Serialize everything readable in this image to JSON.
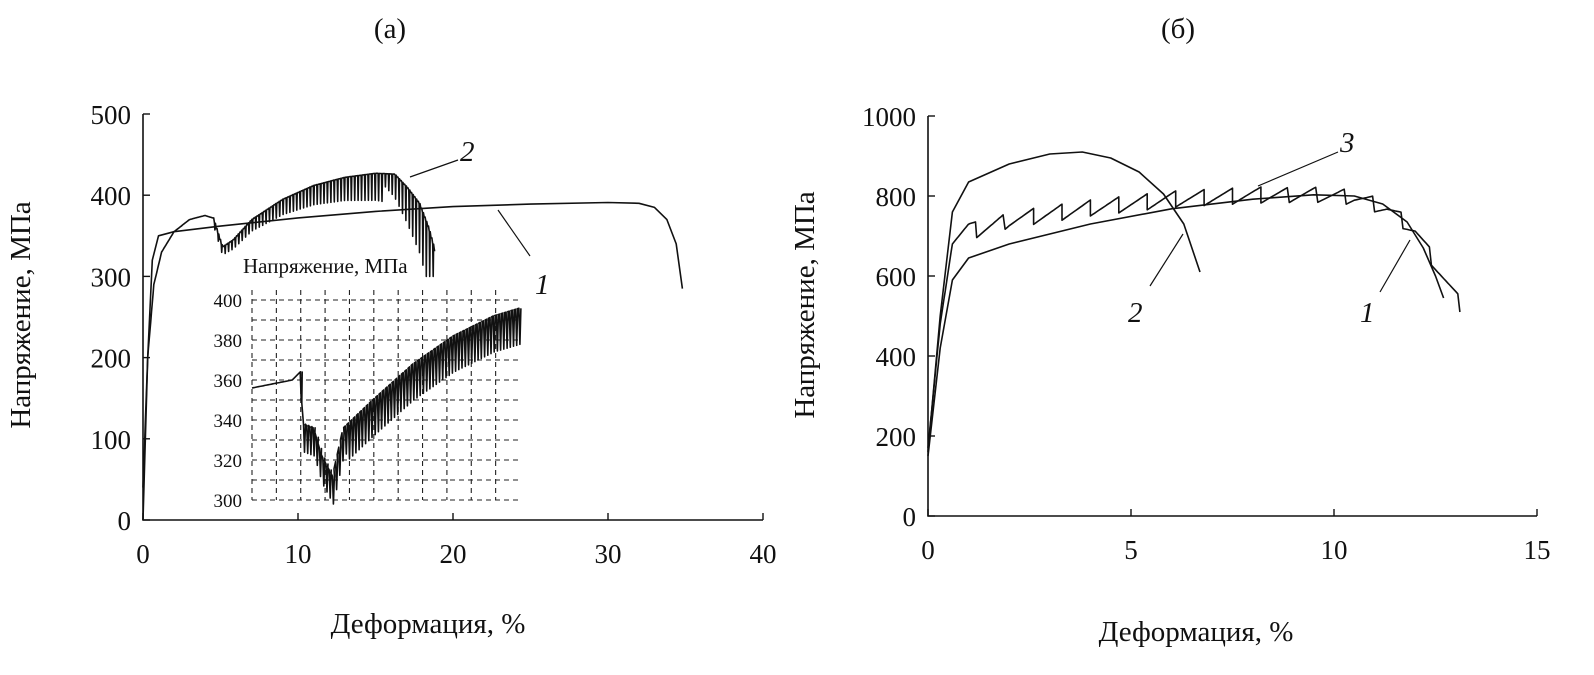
{
  "chart_data": [
    {
      "panel_label": "(a)",
      "type": "line",
      "xlabel": "Деформация, %",
      "ylabel": "Напряжение, МПа",
      "xlim": [
        0,
        40
      ],
      "ylim": [
        0,
        500
      ],
      "xticks": [
        "0",
        "10",
        "20",
        "30",
        "40"
      ],
      "yticks": [
        "0",
        "100",
        "200",
        "300",
        "400",
        "500"
      ],
      "series": [
        {
          "name": "1",
          "points": [
            [
              0,
              0
            ],
            [
              0.3,
              200
            ],
            [
              0.6,
              320
            ],
            [
              1,
              350
            ],
            [
              2,
              355
            ],
            [
              5,
              362
            ],
            [
              10,
              372
            ],
            [
              15,
              380
            ],
            [
              20,
              386
            ],
            [
              25,
              389
            ],
            [
              30,
              391
            ],
            [
              32,
              390
            ],
            [
              33,
              385
            ],
            [
              33.8,
              370
            ],
            [
              34.4,
              340
            ],
            [
              34.8,
              285
            ]
          ]
        },
        {
          "name": "2",
          "serrated_from_x": 4.5,
          "points": [
            [
              0,
              40
            ],
            [
              0.3,
              200
            ],
            [
              0.7,
              290
            ],
            [
              1.2,
              330
            ],
            [
              2,
              355
            ],
            [
              3,
              370
            ],
            [
              4,
              375
            ],
            [
              4.5,
              372
            ],
            [
              5.1,
              336
            ],
            [
              5.8,
              345
            ],
            [
              7,
              370
            ],
            [
              9,
              395
            ],
            [
              11,
              412
            ],
            [
              13,
              422
            ],
            [
              15,
              427
            ],
            [
              16.2,
              426
            ],
            [
              17,
              410
            ],
            [
              17.8,
              390
            ],
            [
              18.4,
              360
            ],
            [
              18.9,
              325
            ]
          ]
        }
      ],
      "inset": {
        "title": "Напряжение, МПа",
        "ylim": [
          300,
          400
        ],
        "yticks": [
          "300",
          "320",
          "340",
          "360",
          "380",
          "400"
        ],
        "grid": true
      }
    },
    {
      "panel_label": "(б)",
      "type": "line",
      "xlabel": "Деформация, %",
      "ylabel": "Напряжение, МПа",
      "xlim": [
        0,
        15
      ],
      "ylim": [
        0,
        1000
      ],
      "xticks": [
        "0",
        "5",
        "10",
        "15"
      ],
      "yticks": [
        "0",
        "200",
        "400",
        "600",
        "800",
        "1000"
      ],
      "series": [
        {
          "name": "1",
          "points": [
            [
              0,
              150
            ],
            [
              0.3,
              420
            ],
            [
              0.6,
              590
            ],
            [
              1,
              645
            ],
            [
              2,
              680
            ],
            [
              4,
              730
            ],
            [
              6,
              768
            ],
            [
              8,
              792
            ],
            [
              9.5,
              803
            ],
            [
              10.5,
              800
            ],
            [
              11.2,
              780
            ],
            [
              11.8,
              735
            ],
            [
              12.2,
              670
            ],
            [
              12.5,
              600
            ],
            [
              12.7,
              545
            ]
          ]
        },
        {
          "name": "2",
          "points": [
            [
              0,
              160
            ],
            [
              0.3,
              500
            ],
            [
              0.6,
              760
            ],
            [
              1,
              835
            ],
            [
              2,
              880
            ],
            [
              3,
              905
            ],
            [
              3.8,
              910
            ],
            [
              4.5,
              895
            ],
            [
              5.2,
              860
            ],
            [
              5.8,
              805
            ],
            [
              6.3,
              730
            ],
            [
              6.7,
              610
            ]
          ]
        },
        {
          "name": "3",
          "serrated": true,
          "points": [
            [
              0,
              170
            ],
            [
              0.3,
              480
            ],
            [
              0.6,
              680
            ],
            [
              1,
              730
            ],
            [
              2,
              760
            ],
            [
              4,
              790
            ],
            [
              6,
              812
            ],
            [
              8,
              822
            ],
            [
              9.5,
              825
            ],
            [
              10.5,
              818
            ],
            [
              11.3,
              790
            ],
            [
              12,
              735
            ],
            [
              12.5,
              650
            ],
            [
              13.1,
              550
            ]
          ]
        }
      ]
    }
  ]
}
